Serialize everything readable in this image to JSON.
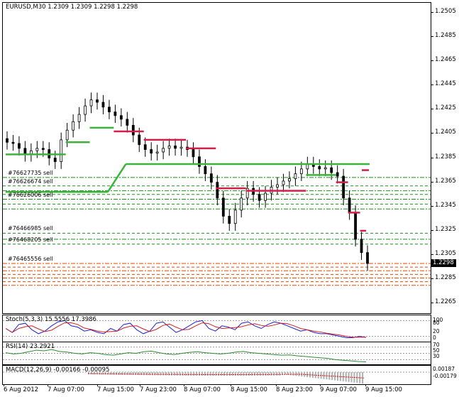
{
  "header": {
    "symbol_label": "EURUSD,M30",
    "ohlc": "1.2309 1.2309 1.2298 1.2298"
  },
  "price_axis": {
    "ticks": [
      "1.2505",
      "1.2485",
      "1.2465",
      "1.2445",
      "1.2425",
      "1.2405",
      "1.2385",
      "1.2365",
      "1.2345",
      "1.2325",
      "1.2305",
      "1.2285",
      "1.2265"
    ],
    "current_price": "1.2298"
  },
  "orders": [
    {
      "label": "#76627735 sell",
      "color": "#1a8f1a"
    },
    {
      "label": "#76626674 sell",
      "color": "#1a8f1a"
    },
    {
      "label": "#76626006 sell",
      "color": "#1a8f1a"
    },
    {
      "label": "#76466985 sell",
      "color": "#1a8f1a"
    },
    {
      "label": "#76468205 sell",
      "color": "#1a8f1a"
    },
    {
      "label": "#76465556 sell",
      "color": "#e04a00"
    }
  ],
  "stoch": {
    "title": "Stoch(5,3,3) 15.5556 17.3986",
    "ticks": [
      "100",
      "80",
      "20",
      "0"
    ]
  },
  "rsi": {
    "title": "RSI(14) 23.2921",
    "ticks": [
      "70",
      "50",
      "30"
    ]
  },
  "macd": {
    "title": "MACD(12,26,9) -0.00166 -0.00095",
    "ticks": [
      "0.00187",
      "-0.00179"
    ]
  },
  "time_axis": [
    "6 Aug 2012",
    "7 Aug 07:00",
    "7 Aug 15:00",
    "7 Aug 23:00",
    "8 Aug 07:00",
    "8 Aug 15:00",
    "8 Aug 23:00",
    "9 Aug 07:00",
    "9 Aug 15:00"
  ],
  "colors": {
    "bull_line": "#3cb43c",
    "bear_line": "#d0204a",
    "order_green": "#1a8f1a",
    "order_orange": "#e04a00",
    "stoch_main": "#2020d0",
    "stoch_signal": "#d02020"
  },
  "chart_data": {
    "type": "line",
    "title": "EURUSD,M30",
    "ylim": [
      1.2257,
      1.2513
    ],
    "series": [
      {
        "values": [
          1.2398,
          1.2397,
          1.2393,
          1.2388,
          1.2391,
          1.2393,
          1.2392,
          1.2385,
          1.2382,
          1.24,
          1.2408,
          1.2415,
          1.2421,
          1.2428,
          1.2433,
          1.2431,
          1.2427,
          1.2423,
          1.242,
          1.2417,
          1.2412,
          1.2404,
          1.2396,
          1.2392,
          1.2389,
          1.239,
          1.2393,
          1.2395,
          1.2393,
          1.2394,
          1.2392,
          1.2386,
          1.2378,
          1.2372,
          1.2365,
          1.2352,
          1.2337,
          1.2331,
          1.2342,
          1.2352,
          1.236,
          1.2355,
          1.235,
          1.2356,
          1.2361,
          1.2363,
          1.2366,
          1.2368,
          1.2372,
          1.2376,
          1.238,
          1.2378,
          1.2376,
          1.2377,
          1.2373,
          1.237,
          1.2352,
          1.234,
          1.2318,
          1.2307,
          1.2298
        ]
      }
    ]
  }
}
